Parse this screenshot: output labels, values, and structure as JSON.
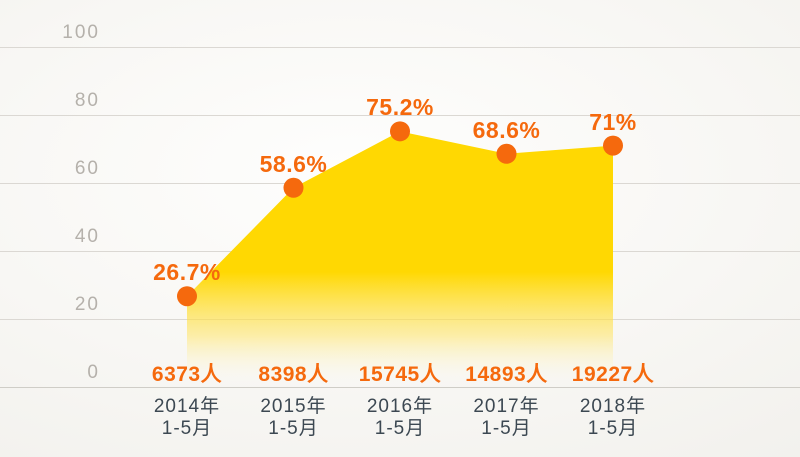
{
  "palette": {
    "orange": "#F5690D",
    "yellow": "#FFD802",
    "yellow_fade_mid": "#FFE35A",
    "grid_line": "#DBD8D3",
    "axis_line": "#CFCDC7",
    "y_tick_text": "#B5B1AB",
    "x_tick_text": "#3C4852"
  },
  "chart_data": {
    "type": "area",
    "title": "",
    "xlabel": "",
    "ylabel": "",
    "ylim": [
      0,
      100
    ],
    "y_ticks": [
      100,
      80,
      60,
      40,
      20,
      0
    ],
    "grid": true,
    "legend_position": "none",
    "categories": [
      {
        "line1": "2014年",
        "line2": "1-5月"
      },
      {
        "line1": "2015年",
        "line2": "1-5月"
      },
      {
        "line1": "2016年",
        "line2": "1-5月"
      },
      {
        "line1": "2017年",
        "line2": "1-5月"
      },
      {
        "line1": "2018年",
        "line2": "1-5月"
      }
    ],
    "series": [
      {
        "name": "percent",
        "values": [
          26.7,
          58.6,
          75.2,
          68.6,
          71
        ],
        "labels": [
          "26.7%",
          "58.6%",
          "75.2%",
          "68.6%",
          "71%"
        ]
      },
      {
        "name": "people-count",
        "values": [
          6373,
          8398,
          15745,
          14893,
          19227
        ],
        "labels": [
          "6373人",
          "8398人",
          "15745人",
          "14893人",
          "19227人"
        ]
      }
    ]
  }
}
